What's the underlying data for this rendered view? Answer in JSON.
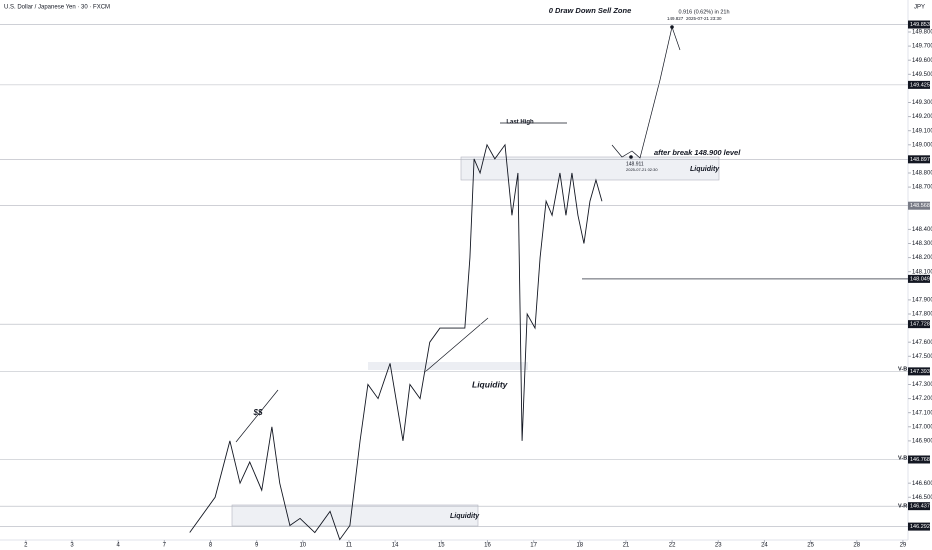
{
  "chart_data": {
    "type": "line",
    "title": "U.S. Dollar / Japanese Yen · 30 · FXCM",
    "currency": "JPY",
    "xticks": [
      {
        "value": 0,
        "label": "2"
      },
      {
        "value": 1,
        "label": "3"
      },
      {
        "value": 2,
        "label": "4"
      },
      {
        "value": 3,
        "label": "7"
      },
      {
        "value": 4,
        "label": "8"
      },
      {
        "value": 5,
        "label": "9"
      },
      {
        "value": 6,
        "label": "10"
      },
      {
        "value": 7,
        "label": "11"
      },
      {
        "value": 8,
        "label": "14"
      },
      {
        "value": 9,
        "label": "15"
      },
      {
        "value": 10,
        "label": "16"
      },
      {
        "value": 11,
        "label": "17"
      },
      {
        "value": 12,
        "label": "18"
      },
      {
        "value": 13,
        "label": "21"
      },
      {
        "value": 14,
        "label": "22"
      },
      {
        "value": 15,
        "label": "23"
      },
      {
        "value": 16,
        "label": "24"
      },
      {
        "value": 17,
        "label": "25"
      },
      {
        "value": 18,
        "label": "28"
      },
      {
        "value": 19,
        "label": "29"
      }
    ],
    "xlim": [
      -0.56,
      19.11
    ],
    "ylim": [
      146.197,
      150.027
    ],
    "yticks": [
      {
        "value": 149.8,
        "label": "149.800"
      },
      {
        "value": 149.7,
        "label": "149.700"
      },
      {
        "value": 149.6,
        "label": "149.600"
      },
      {
        "value": 149.5,
        "label": "149.500"
      },
      {
        "value": 149.3,
        "label": "149.300"
      },
      {
        "value": 149.2,
        "label": "149.200"
      },
      {
        "value": 149.1,
        "label": "149.100"
      },
      {
        "value": 149.0,
        "label": "149.000"
      },
      {
        "value": 148.8,
        "label": "148.800"
      },
      {
        "value": 148.7,
        "label": "148.700"
      },
      {
        "value": 148.4,
        "label": "148.400"
      },
      {
        "value": 148.3,
        "label": "148.300"
      },
      {
        "value": 148.2,
        "label": "148.200"
      },
      {
        "value": 148.1,
        "label": "148.100"
      },
      {
        "value": 147.9,
        "label": "147.900"
      },
      {
        "value": 147.8,
        "label": "147.800"
      },
      {
        "value": 147.6,
        "label": "147.600"
      },
      {
        "value": 147.5,
        "label": "147.500"
      },
      {
        "value": 147.3,
        "label": "147.300"
      },
      {
        "value": 147.2,
        "label": "147.200"
      },
      {
        "value": 147.1,
        "label": "147.100"
      },
      {
        "value": 147.0,
        "label": "147.000"
      },
      {
        "value": 146.9,
        "label": "146.900"
      },
      {
        "value": 146.6,
        "label": "146.600"
      },
      {
        "value": 146.5,
        "label": "146.500"
      }
    ],
    "levels": [
      {
        "value": 149.853,
        "label": "149.853"
      },
      {
        "value": 149.425,
        "label": "149.425"
      },
      {
        "value": 148.897,
        "label": "148.897"
      },
      {
        "value": 148.568,
        "label": "148.568"
      },
      {
        "value": 148.049,
        "label": "148.049"
      },
      {
        "value": 147.728,
        "label": "147.728"
      },
      {
        "value": 147.393,
        "label": "147.393"
      },
      {
        "value": 146.768,
        "label": "146.768"
      },
      {
        "value": 146.437,
        "label": "146.437"
      },
      {
        "value": 146.292,
        "label": "146.292"
      }
    ],
    "series": [
      {
        "name": "USDJPY",
        "color": "#131722",
        "x": [
          3.55,
          4.1,
          4.42,
          4.64,
          4.85,
          5.11,
          5.33,
          5.5,
          5.72,
          5.94,
          6.26,
          6.59,
          6.8,
          7.02,
          7.24,
          7.41,
          7.63,
          7.89,
          8.17,
          8.32,
          8.54,
          8.75,
          8.97,
          9.3,
          9.51,
          9.62,
          9.71,
          9.84,
          9.99,
          10.16,
          10.38,
          10.53,
          10.66,
          10.75,
          10.86,
          11.03,
          11.14,
          11.27,
          11.4,
          11.57,
          11.7,
          11.83,
          11.96,
          12.09,
          12.22,
          12.35,
          12.48
        ],
        "values": [
          146.25,
          146.5,
          146.9,
          146.6,
          146.75,
          146.55,
          147.0,
          146.6,
          146.3,
          146.35,
          146.25,
          146.4,
          146.2,
          146.3,
          146.9,
          147.3,
          147.2,
          147.45,
          146.9,
          147.3,
          147.2,
          147.6,
          147.7,
          147.7,
          147.7,
          148.2,
          148.9,
          148.8,
          149.0,
          148.9,
          149.0,
          148.5,
          148.8,
          146.9,
          147.8,
          147.7,
          148.2,
          148.6,
          148.5,
          148.8,
          148.5,
          148.8,
          148.5,
          148.3,
          148.6,
          148.75,
          148.6
        ]
      }
    ],
    "annotations": [
      "0 Draw Down Sell Zone",
      "0.916 (0.62%) in 21h",
      "149.827",
      "2025-07-21 23:30",
      "Last High",
      "after break 148.900 level",
      "148.911",
      "2025-07-21 02:30",
      "Liquidity",
      "Liquidity",
      "Liquidity",
      "$$",
      "V-B",
      "V-B",
      "V-R"
    ]
  }
}
